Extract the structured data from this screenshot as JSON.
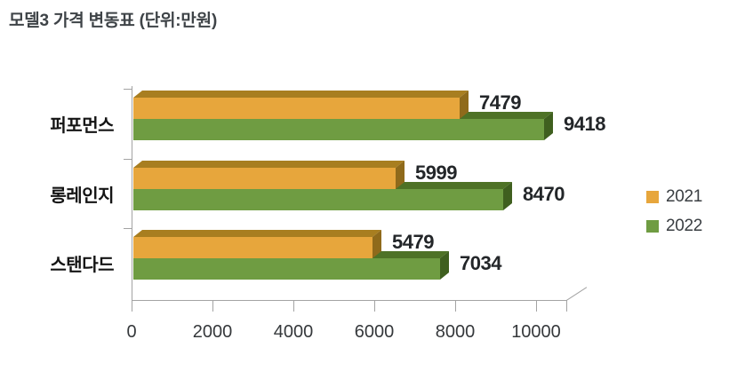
{
  "title": "모델3 가격 변동표 (단위:만원)",
  "colors": {
    "axis": "#a3a3a3",
    "value_label": "#232629",
    "orange_front": "#e7a63c",
    "orange_top": "#a87e20",
    "orange_side": "#8f6a1b",
    "green_front": "#6f9c42",
    "green_top": "#4e7226",
    "green_side": "#3f5f1f"
  },
  "chart_data": {
    "type": "bar",
    "orientation": "horizontal",
    "title": "모델3 가격 변동표 (단위:만원)",
    "categories": [
      "퍼포먼스",
      "롱레인지",
      "스탠다드"
    ],
    "series": [
      {
        "name": "2021",
        "values": [
          7479,
          5999,
          5479
        ],
        "color": "#e7a63c",
        "color_top": "#a87e20",
        "color_side": "#8f6a1b"
      },
      {
        "name": "2022",
        "values": [
          9418,
          8470,
          7034
        ],
        "color": "#6f9c42",
        "color_top": "#4e7226",
        "color_side": "#3f5f1f"
      }
    ],
    "data_labels_shown": true,
    "xlim": [
      0,
      10000
    ],
    "x_ticks": [
      0,
      2000,
      4000,
      6000,
      8000,
      10000
    ],
    "xlabel": "",
    "ylabel": "",
    "grid": false,
    "style": "3d-bevel",
    "legend_position": "right"
  }
}
